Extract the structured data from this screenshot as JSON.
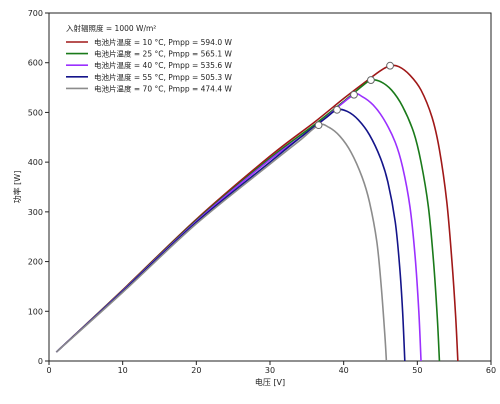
{
  "chart_data": {
    "type": "line",
    "title": "",
    "xlabel": "电压 [V]",
    "ylabel": "功率 [W]",
    "xlim": [
      0,
      60
    ],
    "ylim": [
      0,
      700
    ],
    "xticks": [
      0,
      10,
      20,
      30,
      40,
      50,
      60
    ],
    "yticks": [
      0,
      100,
      200,
      300,
      400,
      500,
      600,
      700
    ],
    "grid": false,
    "legend": {
      "placement": "top-left",
      "header": "入射辐照度 = 1000 W/m²"
    },
    "series": [
      {
        "name": "电池片温度 = 10 °C,  Pmpp = 594.0 W",
        "color": "#a01818",
        "mpp": [
          46.3,
          594.0
        ],
        "points": [
          [
            1,
            18
          ],
          [
            10,
            143
          ],
          [
            20,
            285
          ],
          [
            30,
            412
          ],
          [
            36,
            480
          ],
          [
            40,
            528
          ],
          [
            43,
            562
          ],
          [
            45,
            584
          ],
          [
            46.3,
            594
          ],
          [
            47.5,
            592
          ],
          [
            49,
            575
          ],
          [
            50.5,
            545
          ],
          [
            52,
            490
          ],
          [
            53,
            425
          ],
          [
            54,
            320
          ],
          [
            54.7,
            200
          ],
          [
            55.2,
            90
          ],
          [
            55.5,
            0
          ]
        ]
      },
      {
        "name": "电池片温度 = 25 °C,  Pmpp = 565.1 W",
        "color": "#1a7a1a",
        "mpp": [
          43.7,
          565.1
        ],
        "points": [
          [
            1,
            18
          ],
          [
            10,
            142
          ],
          [
            20,
            283
          ],
          [
            30,
            408
          ],
          [
            36,
            475
          ],
          [
            40,
            522
          ],
          [
            42.5,
            553
          ],
          [
            43.7,
            565.1
          ],
          [
            45,
            562
          ],
          [
            46.5,
            545
          ],
          [
            48,
            512
          ],
          [
            49.5,
            460
          ],
          [
            50.5,
            400
          ],
          [
            51.5,
            310
          ],
          [
            52.2,
            200
          ],
          [
            52.7,
            90
          ],
          [
            53,
            0
          ]
        ]
      },
      {
        "name": "电池片温度 = 40 °C,  Pmpp = 535.6 W",
        "color": "#9b30ff",
        "mpp": [
          41.4,
          535.6
        ],
        "points": [
          [
            1,
            18
          ],
          [
            10,
            141
          ],
          [
            20,
            281
          ],
          [
            30,
            405
          ],
          [
            36,
            470
          ],
          [
            39,
            508
          ],
          [
            41.4,
            535.6
          ],
          [
            42.5,
            532
          ],
          [
            44,
            515
          ],
          [
            45.5,
            485
          ],
          [
            47,
            440
          ],
          [
            48,
            390
          ],
          [
            49,
            310
          ],
          [
            49.7,
            210
          ],
          [
            50.2,
            100
          ],
          [
            50.5,
            0
          ]
        ]
      },
      {
        "name": "电池片温度 = 55 °C,  Pmpp = 505.3 W",
        "color": "#14148a",
        "mpp": [
          39.1,
          505.3
        ],
        "points": [
          [
            1,
            18
          ],
          [
            10,
            140
          ],
          [
            20,
            279
          ],
          [
            30,
            400
          ],
          [
            35,
            460
          ],
          [
            37.5,
            488
          ],
          [
            39.1,
            505.3
          ],
          [
            40.5,
            502
          ],
          [
            42,
            485
          ],
          [
            43.5,
            455
          ],
          [
            45,
            408
          ],
          [
            46,
            360
          ],
          [
            47,
            280
          ],
          [
            47.6,
            190
          ],
          [
            48,
            100
          ],
          [
            48.3,
            0
          ]
        ]
      },
      {
        "name": "电池片温度 = 70 °C,  Pmpp = 474.4 W",
        "color": "#8c8c8c",
        "mpp": [
          36.6,
          474.4
        ],
        "points": [
          [
            1,
            18
          ],
          [
            10,
            138
          ],
          [
            20,
            276
          ],
          [
            30,
            396
          ],
          [
            34,
            443
          ],
          [
            36.6,
            474.4
          ],
          [
            38,
            470
          ],
          [
            39.5,
            452
          ],
          [
            41,
            420
          ],
          [
            42.5,
            370
          ],
          [
            43.5,
            320
          ],
          [
            44.5,
            240
          ],
          [
            45.1,
            150
          ],
          [
            45.6,
            50
          ],
          [
            45.8,
            0
          ]
        ]
      }
    ]
  }
}
